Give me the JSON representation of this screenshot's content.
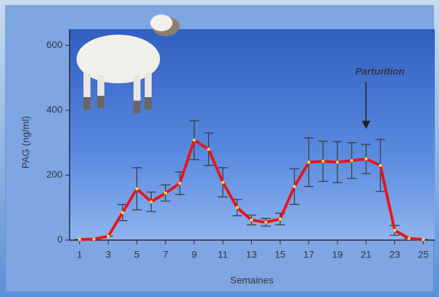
{
  "chart_data": {
    "type": "line",
    "ylabel": "PAG (ng/ml)",
    "xlabel": "Semaines",
    "x": [
      1,
      2,
      3,
      4,
      5,
      6,
      7,
      8,
      9,
      10,
      11,
      12,
      13,
      14,
      15,
      16,
      17,
      18,
      19,
      20,
      21,
      22,
      23,
      24,
      25
    ],
    "values": [
      2,
      3,
      12,
      85,
      158,
      118,
      145,
      175,
      308,
      280,
      178,
      100,
      62,
      55,
      65,
      165,
      240,
      243,
      240,
      245,
      250,
      230,
      30,
      5,
      2
    ],
    "errors": [
      0,
      0,
      0,
      25,
      65,
      30,
      25,
      35,
      60,
      50,
      45,
      25,
      15,
      12,
      18,
      55,
      75,
      62,
      63,
      55,
      45,
      80,
      15,
      0,
      0
    ],
    "color": "#e8141c",
    "marker_color": "#f2e23a",
    "xlim": [
      0.3,
      25.8
    ],
    "ylim": [
      0,
      650
    ],
    "xticks": [
      1,
      3,
      5,
      7,
      9,
      11,
      13,
      15,
      17,
      19,
      21,
      23,
      25
    ],
    "yticks": [
      0,
      200,
      400,
      600
    ],
    "annotation": {
      "text": "Parturition",
      "x": 21
    }
  }
}
